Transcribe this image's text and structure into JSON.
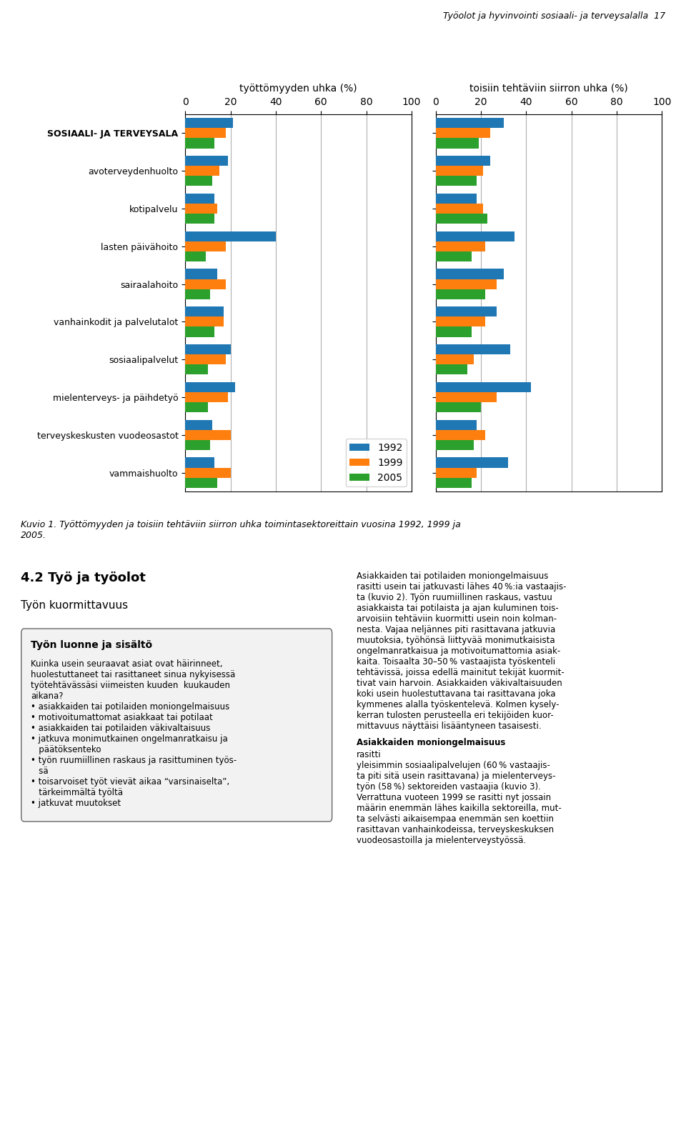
{
  "chart_data": [
    {
      "type": "bar",
      "orientation": "horizontal",
      "title": "työttömyyden uhka (%)",
      "categories": [
        "SOSIAALI- JA TERVEYSALA",
        "avoterveydenhuolto",
        "kotipalvelu",
        "lasten päivähoito",
        "sairaalahoito",
        "vanhainkodit ja palvelutalot",
        "sosiaalipalvelut",
        "mielenterveys- ja päihdetyö",
        "terveyskeskusten vuodeosastot",
        "vammaishuolto"
      ],
      "series": [
        {
          "name": "1992",
          "values": [
            21,
            19,
            13,
            40,
            14,
            17,
            20,
            22,
            12,
            13
          ]
        },
        {
          "name": "1999",
          "values": [
            18,
            15,
            14,
            18,
            18,
            17,
            18,
            19,
            20,
            20
          ]
        },
        {
          "name": "2005",
          "values": [
            13,
            12,
            13,
            9,
            11,
            13,
            10,
            10,
            11,
            14
          ]
        }
      ],
      "xlim": [
        0,
        100
      ],
      "xticks": [
        0,
        20,
        40,
        60,
        80,
        100
      ],
      "grid": true,
      "legend": "lower right",
      "annotations": [
        "Työolot ja hyvinvointi sosiaali- ja terveysalalla  17",
        "Kuvio 1. Työttömyyden ja toisiin tehtäviin siirron uhka toimintasektoreittain vuosina 1992, 1999 ja\n2005.",
        "4.2 Työ ja työolot",
        "Työn kuormittavuus",
        "Työn luonne ja sisältö",
        "Kuinka usein seuraavat asiat ovat häirinneet,\nhuolestuttaneet tai rasittaneet sinua nykyisessä\ntyötehtävässäsi viimeisten kuuden  kuukauden\naikana?\n• asiakkaiden tai potilaiden moniongelmaisuus\n• motivoitumattomat asiakkaat tai potilaat\n• asiakkaiden tai potilaiden väkivaltaisuus\n• jatkuva monimutkainen ongelmanratkaisu ja\n   päätöksenteko\n• työn ruumiillinen raskaus ja rasittuminen työs-\n   sä\n• toisarvoiset työt vievät aikaa “varsinaiselta”,\n   tärkeimmältä työltä\n• jatkuvat muutokset",
        "Asiakkaiden tai potilaiden moniongelmaisuus\nrasitti usein tai jatkuvasti lähes 40 %:ia vastaajis-\nta (kuvio 2). Työn ruumiillinen raskaus, vastuu\nasiakkaista tai potilaista ja ajan kuluminen tois-\narvoisiin tehtäviin kuormitti usein noin kolman-\nnesta. Vajaa neljännes piti rasittavana jatkuvia\nmuutoksia, työhönsä liittyvää monimutkaisista\nongelmanratkaisua ja motivoitumattomia asiak-\nkaita. Toisaalta 30–50 % vastaajista työskenteli\ntehtävissä, joissa edellä mainitut tekijät kuormit-\ntivat vain harvoin. Asiakkaiden väkivaltaisuuden\nkoki usein huolestuttavana tai rasittavana joka\nkymmenes alalla työskentelevä. Kolmen kysely-\nkerran tulosten perusteella eri tekijöiden kuor-\nmittavuus näyttäisi lisääntyneen tasaisesti.",
        "Asiakkaiden moniongelmaisuus",
        "rasitti\nyleisimmin sosiaalipalvelujen (60 % vastaajis-\nta piti sitä usein rasittavana) ja mielenterveys-\ntyön (58 %) sektoreiden vastaajia (kuvio 3).\nVerrattuna vuoteen 1999 se rasitti nyt jossain\nmäärin enemmän lähes kaikilla sektoreilla, mut-\nta selvästi aikaisempaa enemmän sen koettiin\nrasittavan vanhainkodeissa, terveyskeskuksen\nvuodeosastoilla ja mielenterveystyössä."
      ]
    },
    {
      "type": "bar",
      "orientation": "horizontal",
      "title": "toisiin tehtäviin siirron uhka (%)",
      "categories": [
        "SOSIAALI- JA TERVEYSALA",
        "avoterveydenhuolto",
        "kotipalvelu",
        "lasten päivähoito",
        "sairaalahoito",
        "vanhainkodit ja palvelutalot",
        "sosiaalipalvelut",
        "mielenterveys- ja päihdetyö",
        "terveyskeskusten vuodeosastot",
        "vammaishuolto"
      ],
      "series": [
        {
          "name": "1992",
          "values": [
            30,
            24,
            18,
            35,
            30,
            27,
            33,
            42,
            18,
            32
          ]
        },
        {
          "name": "1999",
          "values": [
            24,
            21,
            21,
            22,
            27,
            22,
            17,
            27,
            22,
            18
          ]
        },
        {
          "name": "2005",
          "values": [
            19,
            18,
            23,
            16,
            22,
            16,
            14,
            20,
            17,
            16
          ]
        }
      ],
      "xlim": [
        0,
        100
      ],
      "xticks": [
        0,
        20,
        40,
        60,
        80,
        100
      ],
      "grid": true,
      "tick_labels": "x"
    }
  ]
}
